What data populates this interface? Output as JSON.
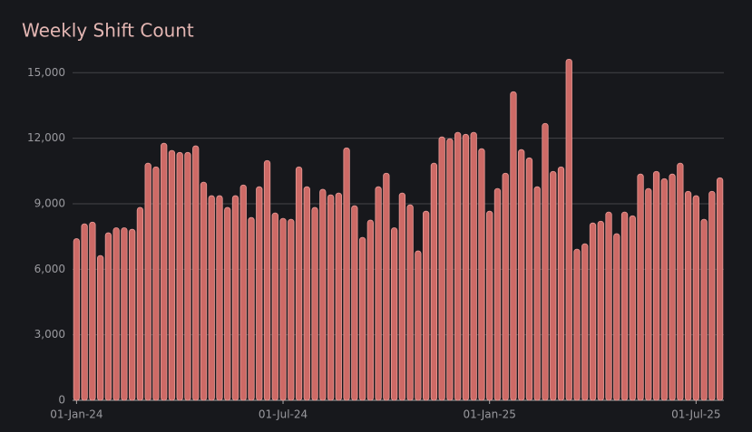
{
  "chart_data": {
    "type": "bar",
    "title": "Weekly Shift Count",
    "categories": [
      "01-Jan-24",
      null,
      null,
      null,
      null,
      null,
      null,
      null,
      null,
      null,
      null,
      null,
      null,
      null,
      null,
      null,
      null,
      null,
      null,
      null,
      null,
      null,
      null,
      null,
      null,
      null,
      "01-Jul-24",
      null,
      null,
      null,
      null,
      null,
      null,
      null,
      null,
      null,
      null,
      null,
      null,
      null,
      null,
      null,
      null,
      null,
      null,
      null,
      null,
      null,
      null,
      null,
      null,
      null,
      "01-Jan-25",
      null,
      null,
      null,
      null,
      null,
      null,
      null,
      null,
      null,
      null,
      null,
      null,
      null,
      null,
      null,
      null,
      null,
      null,
      null,
      null,
      null,
      null,
      null,
      null,
      null,
      "01-Jul-25",
      null,
      null,
      null
    ],
    "values": [
      7400,
      8080,
      8160,
      6630,
      7670,
      7900,
      7900,
      7830,
      8830,
      10860,
      10690,
      11770,
      11440,
      11350,
      11350,
      11650,
      9990,
      9370,
      9370,
      8830,
      9370,
      9860,
      8370,
      9780,
      10980,
      8580,
      8330,
      8290,
      10690,
      9780,
      8830,
      9660,
      9410,
      9490,
      11560,
      8910,
      7460,
      8250,
      9780,
      10400,
      7900,
      9490,
      8950,
      6840,
      8660,
      10860,
      12060,
      11980,
      12270,
      12180,
      12270,
      11520,
      8660,
      9700,
      10400,
      14130,
      11480,
      11100,
      9780,
      12680,
      10480,
      10690,
      15620,
      6920,
      7170,
      8120,
      8200,
      8620,
      7630,
      8620,
      8450,
      10360,
      9700,
      10480,
      10150,
      10360,
      10860,
      9570,
      9370,
      8290,
      9570,
      10190
    ],
    "color": "#cd6a66",
    "ylim": [
      0,
      15800
    ],
    "yticks": [
      0,
      {
        "value": 3000,
        "label": "3,000"
      },
      {
        "value": 6000,
        "label": "6,000"
      },
      {
        "value": 9000,
        "label": "9,000"
      },
      {
        "value": 12000,
        "label": "12,000"
      },
      {
        "value": 15000,
        "label": "15,000"
      }
    ],
    "grid": true
  }
}
